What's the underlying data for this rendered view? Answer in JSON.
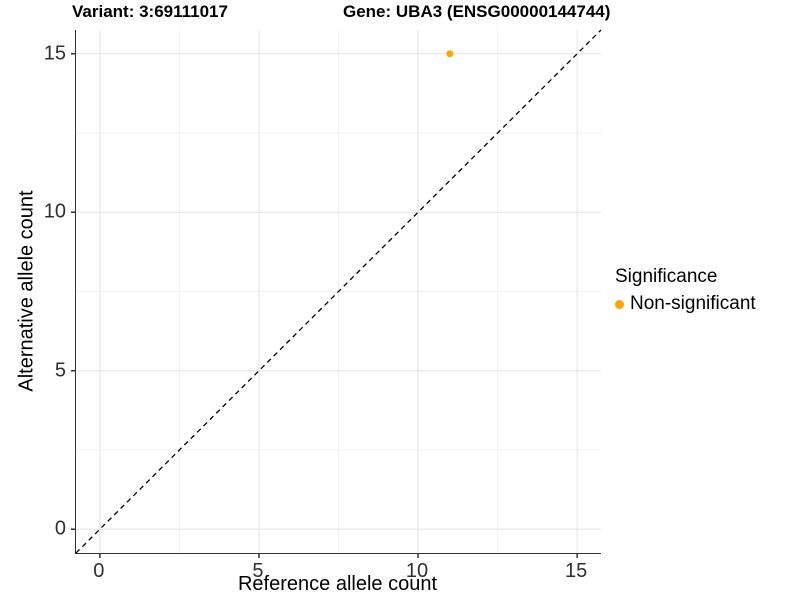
{
  "titles": {
    "variant": "Variant: 3:69111017",
    "gene": "Gene: UBA3 (ENSG00000144744)"
  },
  "axes": {
    "x_label": "Reference allele count",
    "y_label": "Alternative allele count"
  },
  "legend": {
    "title": "Significance",
    "items": [
      {
        "label": "Non-significant",
        "color": "#FFA500"
      }
    ]
  },
  "colors": {
    "axis_line": "#333333",
    "tick_label": "#303030",
    "grid_major": "#e4e4e4",
    "grid_minor": "#f2f2f2",
    "identity_line": "#000000",
    "point": "#FFA500",
    "background": "#ffffff"
  },
  "chart_data": {
    "type": "scatter",
    "title": "Variant: 3:69111017   Gene: UBA3 (ENSG00000144744)",
    "xlabel": "Reference allele count",
    "ylabel": "Alternative allele count",
    "xlim": [
      -0.75,
      15.75
    ],
    "ylim": [
      -0.75,
      15.75
    ],
    "x_ticks": [
      0,
      5,
      10,
      15
    ],
    "y_ticks": [
      0,
      5,
      10,
      15
    ],
    "x_minor_ticks": [
      2.5,
      7.5,
      12.5
    ],
    "y_minor_ticks": [
      2.5,
      7.5,
      12.5
    ],
    "grid": true,
    "legend_position": "right",
    "reference_line": {
      "type": "identity y=x",
      "style": "dashed",
      "color": "#000000"
    },
    "series": [
      {
        "name": "Non-significant",
        "color": "#FFA500",
        "points": [
          {
            "x": 11,
            "y": 15
          }
        ]
      }
    ]
  }
}
